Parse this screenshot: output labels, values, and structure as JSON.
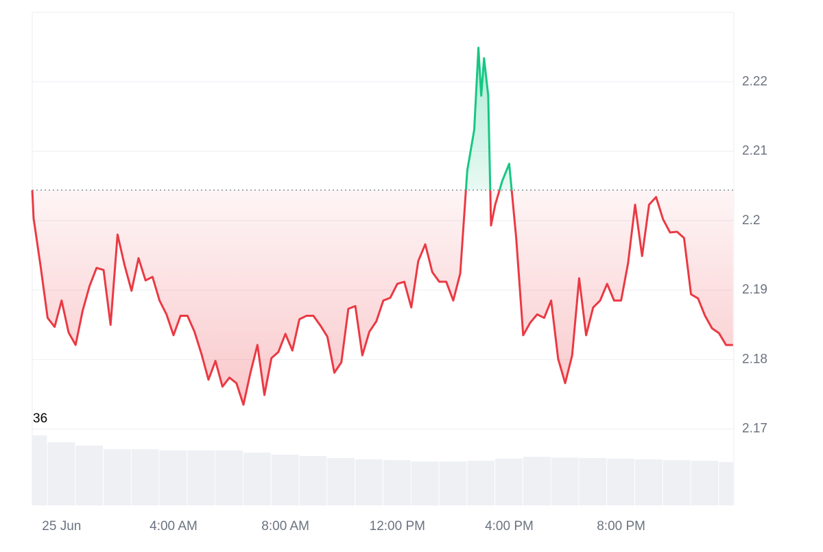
{
  "chart_data": {
    "type": "line",
    "x": [
      -1.05,
      -1,
      -0.75,
      -0.5,
      -0.25,
      0,
      0.25,
      0.5,
      0.75,
      1,
      1.25,
      1.5,
      1.75,
      2,
      2.25,
      2.5,
      2.75,
      3,
      3.25,
      3.5,
      3.75,
      4,
      4.25,
      4.5,
      4.75,
      5,
      5.25,
      5.5,
      5.75,
      6,
      6.25,
      6.5,
      6.75,
      7,
      7.25,
      7.5,
      7.75,
      8,
      8.25,
      8.5,
      8.75,
      9,
      9.25,
      9.5,
      9.75,
      10,
      10.25,
      10.5,
      10.75,
      11,
      11.25,
      11.5,
      11.75,
      12,
      12.25,
      12.5,
      12.75,
      13,
      13.25,
      13.5,
      13.75,
      14,
      14.25,
      14.5,
      14.75,
      14.9,
      15,
      15.1,
      15.25,
      15.35,
      15.5,
      15.75,
      16,
      16.25,
      16.5,
      16.75,
      17,
      17.25,
      17.5,
      17.75,
      18,
      18.25,
      18.5,
      18.75,
      19,
      19.25,
      19.5,
      19.75,
      20,
      20.25,
      20.5,
      20.75,
      21,
      21.25,
      21.5,
      21.75,
      22,
      22.25,
      22.5,
      22.75,
      23,
      23.25,
      23.5,
      23.75,
      24
    ],
    "values": [
      2.2044,
      2.2003,
      2.1934,
      2.186,
      2.1847,
      2.1885,
      2.1839,
      2.1821,
      2.187,
      2.1906,
      2.1932,
      2.1929,
      2.185,
      2.198,
      2.1936,
      2.1899,
      2.1946,
      2.1914,
      2.1919,
      2.1885,
      2.1865,
      2.1835,
      2.1863,
      2.1863,
      2.184,
      2.1808,
      2.1771,
      2.1798,
      2.1761,
      2.1774,
      2.1766,
      2.1735,
      2.1781,
      2.1821,
      2.1749,
      2.1802,
      2.1811,
      2.1837,
      2.1813,
      2.1858,
      2.1863,
      2.1863,
      2.1849,
      2.1833,
      2.1781,
      2.1796,
      2.1873,
      2.1877,
      2.1806,
      2.184,
      2.1855,
      2.1885,
      2.1889,
      2.1909,
      2.1912,
      2.1875,
      2.1942,
      2.1966,
      2.1926,
      2.1912,
      2.1912,
      2.1885,
      2.1924,
      2.2072,
      2.2131,
      2.2249,
      2.218,
      2.2234,
      2.218,
      2.1993,
      2.2023,
      2.2057,
      2.2082,
      2.1975,
      2.1835,
      2.1853,
      2.1865,
      2.186,
      2.1885,
      2.1801,
      2.1766,
      2.1806,
      2.1917,
      2.1835,
      2.1875,
      2.1885,
      2.1909,
      2.1885,
      2.1885,
      2.1939,
      2.2023,
      2.1949,
      2.2023,
      2.2034,
      2.2002,
      2.1983,
      2.1984,
      2.1975,
      2.1894,
      2.1888,
      2.1863,
      2.1845,
      2.1838,
      2.1821,
      2.1821
    ],
    "baseline": 2.2044,
    "color_up": "#16c784",
    "color_down": "#ea3943",
    "xlim": [
      -1.05,
      24.03
    ],
    "xticks": [
      {
        "value": 0,
        "label": "25 Jun"
      },
      {
        "value": 4,
        "label": "4:00 AM"
      },
      {
        "value": 8,
        "label": "8:00 AM"
      },
      {
        "value": 12,
        "label": "12:00 PM"
      },
      {
        "value": 16,
        "label": "4:00 PM"
      },
      {
        "value": 20,
        "label": "8:00 PM"
      }
    ],
    "ylim": [
      2.159,
      2.23
    ],
    "yticks": [
      2.17,
      2.18,
      2.19,
      2.2,
      2.21,
      2.22
    ],
    "grid": true,
    "volume": {
      "max": 36,
      "color": "#eef0f4",
      "x": [
        -1,
        0,
        1,
        2,
        3,
        4,
        5,
        6,
        7,
        8,
        9,
        10,
        11,
        12,
        13,
        14,
        15,
        16,
        17,
        18,
        19,
        20,
        21,
        22,
        23,
        24
      ],
      "values": [
        28.9,
        26.1,
        24.7,
        23.2,
        23.2,
        22.7,
        22.7,
        22.7,
        21.8,
        21.0,
        20.4,
        19.6,
        19.0,
        18.7,
        18.1,
        18.1,
        18.4,
        19.3,
        20.1,
        19.8,
        19.6,
        19.3,
        19.0,
        18.7,
        18.4,
        17.9
      ]
    }
  }
}
